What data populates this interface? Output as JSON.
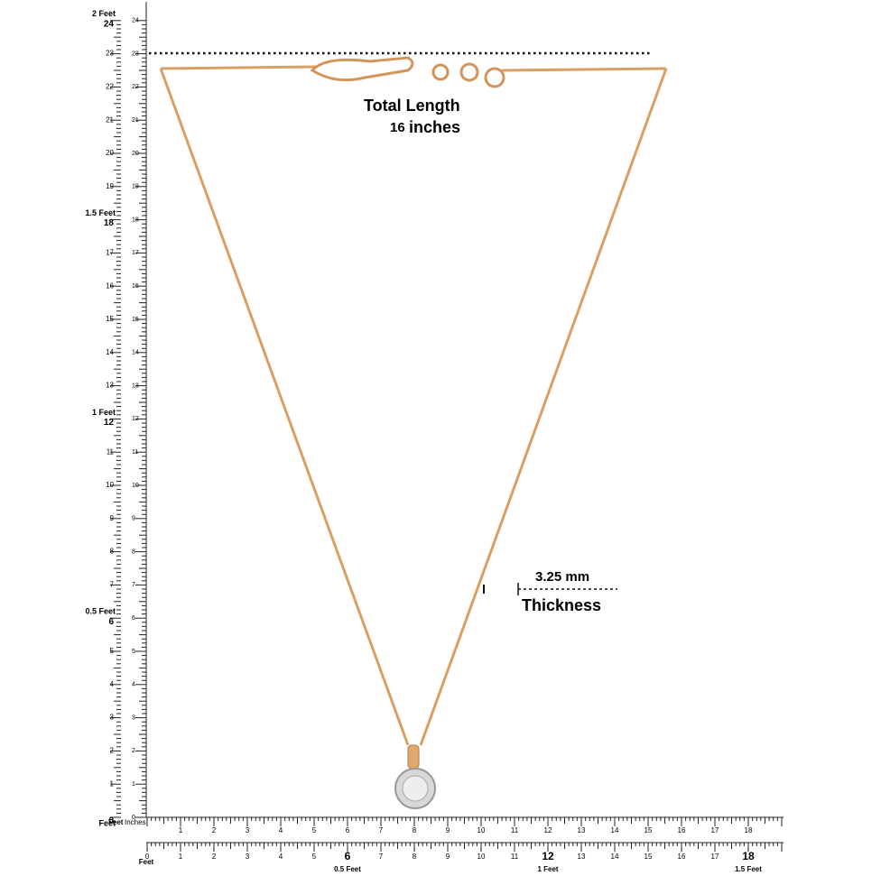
{
  "annotations": {
    "title": "Total Length",
    "length_value": "16",
    "length_unit": "inches",
    "thickness_value": "3.25 mm",
    "thickness_label": "Thickness"
  },
  "vertical_ruler": {
    "inch_labels": [
      "0",
      "1",
      "2",
      "3",
      "4",
      "5",
      "6",
      "7",
      "8",
      "9",
      "10",
      "11",
      "12",
      "13",
      "14",
      "15",
      "16",
      "17",
      "18",
      "19",
      "20",
      "21",
      "22",
      "23",
      "24"
    ],
    "feet_labels": [
      "Feet",
      "0.5 Feet",
      "1 Feet",
      "1.5 Feet",
      "2 Feet"
    ]
  },
  "horizontal_ruler": {
    "unit_labels": [
      "Feet",
      "Inches"
    ],
    "top_labels": [
      "1",
      "2",
      "3",
      "4",
      "5",
      "6",
      "7",
      "8",
      "9",
      "10",
      "11",
      "12",
      "13",
      "14",
      "15",
      "16",
      "17",
      "18"
    ],
    "bottom_labels": [
      "0",
      "1",
      "2",
      "3",
      "4",
      "5",
      "6",
      "7",
      "8",
      "9",
      "10",
      "11",
      "12",
      "13",
      "14",
      "15",
      "16",
      "17",
      "18"
    ],
    "feet_labels": [
      "0.5 Feet",
      "1 Feet",
      "1.5 Feet"
    ]
  }
}
